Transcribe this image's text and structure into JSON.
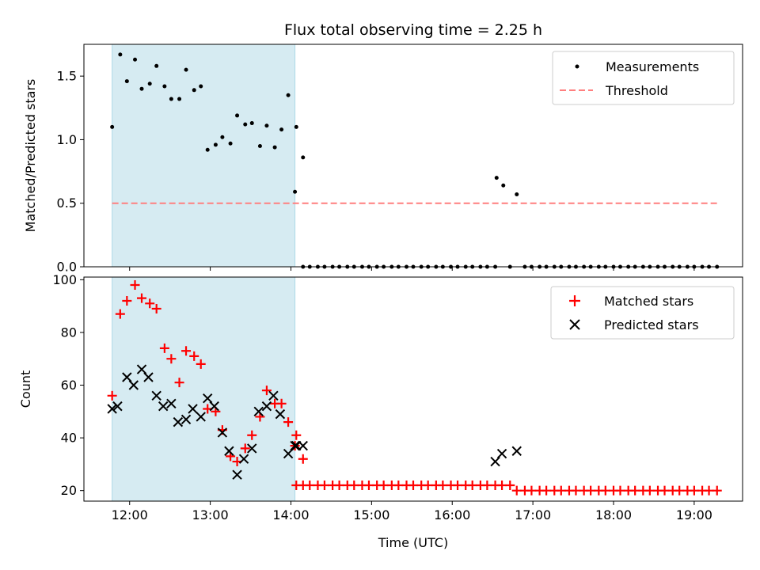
{
  "figure": {
    "title": "Flux total observing time = 2.25 h",
    "xlabel": "Time (UTC)",
    "x_tick_labels": [
      "12:00",
      "13:00",
      "14:00",
      "15:00",
      "16:00",
      "17:00",
      "18:00",
      "19:00"
    ]
  },
  "colors": {
    "measurements": "#000000",
    "threshold": "#ff7f7f",
    "matched": "#ff0000",
    "predicted": "#000000",
    "shade": "#add8e6"
  },
  "chart_data": [
    {
      "type": "scatter",
      "ylabel": "Matched/Predicted stars",
      "xlim": [
        "11:26",
        "19:36"
      ],
      "ylim": [
        0,
        1.75
      ],
      "y_ticks": [
        0.0,
        0.5,
        1.0,
        1.5
      ],
      "y_tick_labels": [
        "0.0",
        "0.5",
        "1.0",
        "1.5"
      ],
      "grid": false,
      "legend_position": "top-right",
      "shaded_region": {
        "x_start": "11:47",
        "x_end": "14:03"
      },
      "series": [
        {
          "name": "Measurements",
          "marker": "dot",
          "points": [
            [
              "11:47",
              1.1
            ],
            [
              "11:53",
              1.67
            ],
            [
              "11:58",
              1.46
            ],
            [
              "12:04",
              1.63
            ],
            [
              "12:09",
              1.4
            ],
            [
              "12:15",
              1.44
            ],
            [
              "12:20",
              1.58
            ],
            [
              "12:26",
              1.42
            ],
            [
              "12:31",
              1.32
            ],
            [
              "12:37",
              1.32
            ],
            [
              "12:42",
              1.55
            ],
            [
              "12:48",
              1.39
            ],
            [
              "12:53",
              1.42
            ],
            [
              "12:58",
              0.92
            ],
            [
              "13:04",
              0.96
            ],
            [
              "13:09",
              1.02
            ],
            [
              "13:15",
              0.97
            ],
            [
              "13:20",
              1.19
            ],
            [
              "13:26",
              1.12
            ],
            [
              "13:31",
              1.13
            ],
            [
              "13:37",
              0.95
            ],
            [
              "13:42",
              1.11
            ],
            [
              "13:48",
              0.94
            ],
            [
              "13:53",
              1.08
            ],
            [
              "13:58",
              1.35
            ],
            [
              "14:04",
              1.1
            ],
            [
              "14:09",
              0.86
            ],
            [
              "14:03",
              0.59
            ],
            [
              "14:09",
              0
            ],
            [
              "14:14",
              0
            ],
            [
              "14:20",
              0
            ],
            [
              "14:25",
              0
            ],
            [
              "14:31",
              0
            ],
            [
              "14:36",
              0
            ],
            [
              "14:42",
              0
            ],
            [
              "14:47",
              0
            ],
            [
              "14:53",
              0
            ],
            [
              "14:58",
              0
            ],
            [
              "15:04",
              0
            ],
            [
              "15:09",
              0
            ],
            [
              "15:15",
              0
            ],
            [
              "15:20",
              0
            ],
            [
              "15:26",
              0
            ],
            [
              "15:31",
              0
            ],
            [
              "15:37",
              0
            ],
            [
              "15:42",
              0
            ],
            [
              "15:48",
              0
            ],
            [
              "15:53",
              0
            ],
            [
              "15:59",
              0
            ],
            [
              "16:04",
              0
            ],
            [
              "16:10",
              0
            ],
            [
              "16:15",
              0
            ],
            [
              "16:21",
              0
            ],
            [
              "16:26",
              0
            ],
            [
              "16:32",
              0
            ],
            [
              "16:33",
              0.7
            ],
            [
              "16:38",
              0.64
            ],
            [
              "16:43",
              0
            ],
            [
              "16:48",
              0.57
            ],
            [
              "16:54",
              0
            ],
            [
              "16:59",
              0
            ],
            [
              "17:05",
              0
            ],
            [
              "17:10",
              0
            ],
            [
              "17:16",
              0
            ],
            [
              "17:21",
              0
            ],
            [
              "17:27",
              0
            ],
            [
              "17:32",
              0
            ],
            [
              "17:38",
              0
            ],
            [
              "17:43",
              0
            ],
            [
              "17:49",
              0
            ],
            [
              "17:54",
              0
            ],
            [
              "18:00",
              0
            ],
            [
              "18:05",
              0
            ],
            [
              "18:11",
              0
            ],
            [
              "18:16",
              0
            ],
            [
              "18:22",
              0
            ],
            [
              "18:27",
              0
            ],
            [
              "18:33",
              0
            ],
            [
              "18:38",
              0
            ],
            [
              "18:44",
              0
            ],
            [
              "18:49",
              0
            ],
            [
              "18:55",
              0
            ],
            [
              "19:00",
              0
            ],
            [
              "19:06",
              0
            ],
            [
              "19:11",
              0
            ],
            [
              "19:17",
              0
            ]
          ]
        },
        {
          "name": "Threshold",
          "style": "dashed",
          "points": [
            [
              "11:47",
              0.5
            ],
            [
              "19:17",
              0.5
            ]
          ]
        }
      ]
    },
    {
      "type": "scatter",
      "ylabel": "Count",
      "xlim": [
        "11:26",
        "19:36"
      ],
      "ylim": [
        16,
        101
      ],
      "y_ticks": [
        20,
        40,
        60,
        80,
        100
      ],
      "y_tick_labels": [
        "20",
        "40",
        "60",
        "80",
        "100"
      ],
      "grid": false,
      "legend_position": "top-right",
      "shaded_region": {
        "x_start": "11:47",
        "x_end": "14:03"
      },
      "series": [
        {
          "name": "Matched stars",
          "marker": "plus",
          "points": [
            [
              "11:47",
              56
            ],
            [
              "11:53",
              87
            ],
            [
              "11:58",
              92
            ],
            [
              "12:04",
              98
            ],
            [
              "12:09",
              93
            ],
            [
              "12:15",
              91
            ],
            [
              "12:20",
              89
            ],
            [
              "12:26",
              74
            ],
            [
              "12:31",
              70
            ],
            [
              "12:37",
              61
            ],
            [
              "12:42",
              73
            ],
            [
              "12:48",
              71
            ],
            [
              "12:53",
              68
            ],
            [
              "12:58",
              51
            ],
            [
              "13:04",
              50
            ],
            [
              "13:09",
              43
            ],
            [
              "13:15",
              33
            ],
            [
              "13:20",
              31
            ],
            [
              "13:26",
              36
            ],
            [
              "13:31",
              41
            ],
            [
              "13:37",
              48
            ],
            [
              "13:42",
              58
            ],
            [
              "13:48",
              53
            ],
            [
              "13:53",
              53
            ],
            [
              "13:58",
              46
            ],
            [
              "14:04",
              41
            ],
            [
              "14:09",
              32
            ],
            [
              "14:03",
              37
            ],
            [
              "14:04",
              22
            ],
            [
              "14:09",
              22
            ],
            [
              "14:14",
              22
            ],
            [
              "14:20",
              22
            ],
            [
              "14:25",
              22
            ],
            [
              "14:31",
              22
            ],
            [
              "14:36",
              22
            ],
            [
              "14:42",
              22
            ],
            [
              "14:47",
              22
            ],
            [
              "14:53",
              22
            ],
            [
              "14:58",
              22
            ],
            [
              "15:04",
              22
            ],
            [
              "15:09",
              22
            ],
            [
              "15:15",
              22
            ],
            [
              "15:20",
              22
            ],
            [
              "15:26",
              22
            ],
            [
              "15:31",
              22
            ],
            [
              "15:37",
              22
            ],
            [
              "15:42",
              22
            ],
            [
              "15:48",
              22
            ],
            [
              "15:53",
              22
            ],
            [
              "15:59",
              22
            ],
            [
              "16:04",
              22
            ],
            [
              "16:10",
              22
            ],
            [
              "16:15",
              22
            ],
            [
              "16:21",
              22
            ],
            [
              "16:26",
              22
            ],
            [
              "16:32",
              22
            ],
            [
              "16:37",
              22
            ],
            [
              "16:43",
              22
            ],
            [
              "16:48",
              20
            ],
            [
              "16:54",
              20
            ],
            [
              "16:59",
              20
            ],
            [
              "17:05",
              20
            ],
            [
              "17:10",
              20
            ],
            [
              "17:16",
              20
            ],
            [
              "17:21",
              20
            ],
            [
              "17:27",
              20
            ],
            [
              "17:32",
              20
            ],
            [
              "17:38",
              20
            ],
            [
              "17:43",
              20
            ],
            [
              "17:49",
              20
            ],
            [
              "17:54",
              20
            ],
            [
              "18:00",
              20
            ],
            [
              "18:05",
              20
            ],
            [
              "18:11",
              20
            ],
            [
              "18:16",
              20
            ],
            [
              "18:22",
              20
            ],
            [
              "18:27",
              20
            ],
            [
              "18:33",
              20
            ],
            [
              "18:38",
              20
            ],
            [
              "18:44",
              20
            ],
            [
              "18:49",
              20
            ],
            [
              "18:55",
              20
            ],
            [
              "19:00",
              20
            ],
            [
              "19:06",
              20
            ],
            [
              "19:11",
              20
            ],
            [
              "19:17",
              20
            ]
          ]
        },
        {
          "name": "Predicted stars",
          "marker": "x",
          "points": [
            [
              "11:47",
              51
            ],
            [
              "11:51",
              52
            ],
            [
              "11:58",
              63
            ],
            [
              "12:03",
              60
            ],
            [
              "12:09",
              66
            ],
            [
              "12:14",
              63
            ],
            [
              "12:20",
              56
            ],
            [
              "12:25",
              52
            ],
            [
              "12:31",
              53
            ],
            [
              "12:36",
              46
            ],
            [
              "12:42",
              47
            ],
            [
              "12:47",
              51
            ],
            [
              "12:53",
              48
            ],
            [
              "12:58",
              55
            ],
            [
              "13:03",
              52
            ],
            [
              "13:09",
              42
            ],
            [
              "13:14",
              35
            ],
            [
              "13:20",
              26
            ],
            [
              "13:25",
              32
            ],
            [
              "13:31",
              36
            ],
            [
              "13:36",
              50
            ],
            [
              "13:42",
              52
            ],
            [
              "13:47",
              56
            ],
            [
              "13:52",
              49
            ],
            [
              "13:58",
              34
            ],
            [
              "14:03",
              37
            ],
            [
              "14:09",
              37
            ],
            [
              "14:04",
              37
            ],
            [
              "16:32",
              31
            ],
            [
              "16:37",
              34
            ],
            [
              "16:48",
              35
            ]
          ]
        }
      ]
    }
  ]
}
